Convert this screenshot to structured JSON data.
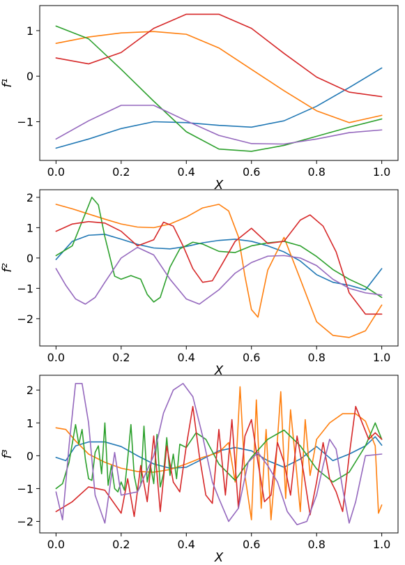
{
  "chart_data": [
    {
      "type": "line",
      "xlabel": "X",
      "ylabel": "f¹",
      "xlim": [
        -0.05,
        1.05
      ],
      "ylim": [
        -1.85,
        1.55
      ],
      "xticks": [
        0.0,
        0.2,
        0.4,
        0.6,
        0.8,
        1.0
      ],
      "xtick_labels": [
        "0.0",
        "0.2",
        "0.4",
        "0.6",
        "0.8",
        "1.0"
      ],
      "yticks": [
        1,
        0,
        -1
      ],
      "ytick_labels": [
        "1",
        "0",
        "−1"
      ],
      "grid": false,
      "series": [
        {
          "color": "#1f77b4",
          "x": [
            0,
            0.1,
            0.2,
            0.3,
            0.4,
            0.5,
            0.6,
            0.7,
            0.8,
            0.9,
            1.0
          ],
          "y": [
            -1.58,
            -1.38,
            -1.15,
            -1.0,
            -1.02,
            -1.08,
            -1.12,
            -0.98,
            -0.66,
            -0.25,
            0.18
          ]
        },
        {
          "color": "#ff7f0e",
          "x": [
            0,
            0.1,
            0.2,
            0.3,
            0.4,
            0.5,
            0.6,
            0.7,
            0.8,
            0.9,
            1.0
          ],
          "y": [
            0.72,
            0.86,
            0.95,
            0.98,
            0.92,
            0.62,
            0.15,
            -0.32,
            -0.76,
            -1.02,
            -0.86
          ]
        },
        {
          "color": "#2ca02c",
          "x": [
            0,
            0.1,
            0.2,
            0.3,
            0.4,
            0.5,
            0.6,
            0.7,
            0.8,
            0.9,
            1.0
          ],
          "y": [
            1.1,
            0.82,
            0.15,
            -0.55,
            -1.22,
            -1.6,
            -1.65,
            -1.52,
            -1.32,
            -1.12,
            -0.94
          ]
        },
        {
          "color": "#d62728",
          "x": [
            0,
            0.1,
            0.2,
            0.3,
            0.4,
            0.5,
            0.6,
            0.7,
            0.8,
            0.9,
            1.0
          ],
          "y": [
            0.4,
            0.27,
            0.52,
            1.05,
            1.36,
            1.36,
            1.05,
            0.5,
            -0.02,
            -0.35,
            -0.45
          ]
        },
        {
          "color": "#9467bd",
          "x": [
            0,
            0.1,
            0.2,
            0.3,
            0.4,
            0.5,
            0.6,
            0.7,
            0.8,
            0.9,
            1.0
          ],
          "y": [
            -1.38,
            -0.98,
            -0.64,
            -0.64,
            -0.98,
            -1.3,
            -1.48,
            -1.49,
            -1.38,
            -1.24,
            -1.18
          ]
        }
      ]
    },
    {
      "type": "line",
      "xlabel": "X",
      "ylabel": "f²",
      "xlim": [
        -0.05,
        1.05
      ],
      "ylim": [
        -2.9,
        2.25
      ],
      "xticks": [
        0.0,
        0.2,
        0.4,
        0.6,
        0.8,
        1.0
      ],
      "xtick_labels": [
        "0.0",
        "0.2",
        "0.4",
        "0.6",
        "0.8",
        "1.0"
      ],
      "yticks": [
        2,
        1,
        0,
        -1,
        -2
      ],
      "ytick_labels": [
        "2",
        "1",
        "0",
        "−1",
        "−2"
      ],
      "grid": false,
      "series": [
        {
          "color": "#1f77b4",
          "x": [
            0,
            0.05,
            0.1,
            0.15,
            0.2,
            0.25,
            0.3,
            0.35,
            0.4,
            0.45,
            0.5,
            0.55,
            0.6,
            0.65,
            0.7,
            0.75,
            0.8,
            0.85,
            0.9,
            0.95,
            1.0
          ],
          "y": [
            -0.05,
            0.55,
            0.75,
            0.78,
            0.62,
            0.45,
            0.33,
            0.3,
            0.38,
            0.5,
            0.58,
            0.62,
            0.55,
            0.4,
            0.2,
            -0.1,
            -0.55,
            -0.8,
            -0.9,
            -1.05,
            -0.35
          ]
        },
        {
          "color": "#ff7f0e",
          "x": [
            0,
            0.05,
            0.1,
            0.15,
            0.2,
            0.25,
            0.3,
            0.35,
            0.4,
            0.45,
            0.5,
            0.53,
            0.56,
            0.58,
            0.6,
            0.62,
            0.65,
            0.7,
            0.75,
            0.8,
            0.85,
            0.9,
            0.95,
            1.0
          ],
          "y": [
            1.77,
            1.62,
            1.45,
            1.28,
            1.12,
            1.02,
            1.0,
            1.12,
            1.35,
            1.65,
            1.77,
            1.55,
            0.7,
            -0.6,
            -1.7,
            -1.95,
            -0.4,
            0.68,
            -0.7,
            -2.1,
            -2.55,
            -2.62,
            -2.4,
            -1.55
          ]
        },
        {
          "color": "#2ca02c",
          "x": [
            0,
            0.05,
            0.08,
            0.11,
            0.13,
            0.15,
            0.18,
            0.2,
            0.23,
            0.26,
            0.28,
            0.3,
            0.32,
            0.35,
            0.38,
            0.42,
            0.45,
            0.5,
            0.55,
            0.6,
            0.65,
            0.7,
            0.75,
            0.8,
            0.85,
            0.9,
            0.95,
            1.0
          ],
          "y": [
            0.08,
            0.4,
            1.2,
            2.0,
            1.75,
            0.7,
            -0.6,
            -0.7,
            -0.58,
            -0.7,
            -1.2,
            -1.45,
            -1.3,
            -0.3,
            0.3,
            0.52,
            0.46,
            0.22,
            0.18,
            0.4,
            0.5,
            0.55,
            0.4,
            0.05,
            -0.38,
            -0.7,
            -0.95,
            -1.3
          ]
        },
        {
          "color": "#d62728",
          "x": [
            0,
            0.05,
            0.1,
            0.15,
            0.2,
            0.25,
            0.3,
            0.33,
            0.36,
            0.39,
            0.42,
            0.45,
            0.48,
            0.51,
            0.55,
            0.6,
            0.65,
            0.7,
            0.75,
            0.78,
            0.82,
            0.86,
            0.9,
            0.95,
            1.0
          ],
          "y": [
            0.88,
            1.12,
            1.2,
            1.15,
            0.88,
            0.4,
            0.6,
            1.18,
            1.05,
            0.4,
            -0.35,
            -0.8,
            -0.75,
            -0.2,
            0.55,
            0.98,
            0.48,
            0.55,
            1.25,
            1.42,
            1.05,
            0.2,
            -1.15,
            -1.85,
            -1.85
          ]
        },
        {
          "color": "#9467bd",
          "x": [
            0,
            0.03,
            0.06,
            0.09,
            0.12,
            0.15,
            0.2,
            0.25,
            0.3,
            0.35,
            0.4,
            0.44,
            0.5,
            0.55,
            0.6,
            0.65,
            0.7,
            0.75,
            0.8,
            0.85,
            0.9,
            0.95,
            1.0
          ],
          "y": [
            -0.35,
            -0.9,
            -1.35,
            -1.52,
            -1.3,
            -0.8,
            0.0,
            0.35,
            0.1,
            -0.7,
            -1.35,
            -1.52,
            -1.05,
            -0.5,
            -0.15,
            0.06,
            0.08,
            0.0,
            -0.25,
            -0.7,
            -1.0,
            -1.15,
            -1.22
          ]
        }
      ]
    },
    {
      "type": "line",
      "xlabel": "X",
      "ylabel": "f³",
      "xlim": [
        -0.05,
        1.05
      ],
      "ylim": [
        -2.35,
        2.45
      ],
      "xticks": [
        0.0,
        0.2,
        0.4,
        0.6,
        0.8,
        1.0
      ],
      "xtick_labels": [
        "0.0",
        "0.2",
        "0.4",
        "0.6",
        "0.8",
        "1.0"
      ],
      "yticks": [
        2,
        1,
        0,
        -1,
        -2
      ],
      "ytick_labels": [
        "2",
        "1",
        "0",
        "−1",
        "−2"
      ],
      "grid": false,
      "series": [
        {
          "color": "#1f77b4",
          "x": [
            0,
            0.03,
            0.06,
            0.1,
            0.15,
            0.2,
            0.25,
            0.3,
            0.35,
            0.4,
            0.45,
            0.5,
            0.55,
            0.6,
            0.65,
            0.7,
            0.75,
            0.8,
            0.85,
            0.9,
            0.95,
            0.98,
            1.0
          ],
          "y": [
            -0.05,
            -0.15,
            0.3,
            0.42,
            0.42,
            0.28,
            0.0,
            -0.25,
            -0.38,
            -0.35,
            -0.1,
            0.15,
            0.25,
            0.15,
            -0.15,
            -0.35,
            -0.1,
            0.28,
            -0.15,
            0.05,
            0.3,
            0.58,
            0.32
          ]
        },
        {
          "color": "#ff7f0e",
          "x": [
            0,
            0.03,
            0.06,
            0.1,
            0.15,
            0.2,
            0.25,
            0.3,
            0.35,
            0.4,
            0.45,
            0.5,
            0.53,
            0.55,
            0.565,
            0.58,
            0.6,
            0.615,
            0.63,
            0.645,
            0.66,
            0.675,
            0.69,
            0.705,
            0.72,
            0.735,
            0.75,
            0.765,
            0.78,
            0.8,
            0.84,
            0.88,
            0.92,
            0.95,
            0.98,
            0.99,
            1.0
          ],
          "y": [
            0.85,
            0.8,
            0.45,
            0.05,
            -0.2,
            -0.38,
            -0.48,
            -0.5,
            -0.42,
            -0.25,
            -0.05,
            0.1,
            0.4,
            -0.8,
            2.1,
            -0.6,
            -1.95,
            1.7,
            -1.6,
            0.8,
            -1.95,
            -0.2,
            1.95,
            -1.3,
            1.4,
            -0.1,
            -1.7,
            1.1,
            -0.6,
            0.5,
            1.0,
            1.28,
            1.28,
            1.05,
            0.3,
            -1.75,
            -1.5
          ]
        },
        {
          "color": "#2ca02c",
          "x": [
            0,
            0.02,
            0.04,
            0.06,
            0.07,
            0.08,
            0.09,
            0.1,
            0.11,
            0.12,
            0.13,
            0.14,
            0.15,
            0.16,
            0.17,
            0.18,
            0.19,
            0.2,
            0.21,
            0.22,
            0.23,
            0.24,
            0.25,
            0.26,
            0.27,
            0.28,
            0.29,
            0.3,
            0.31,
            0.32,
            0.33,
            0.34,
            0.35,
            0.36,
            0.37,
            0.38,
            0.4,
            0.43,
            0.46,
            0.5,
            0.55,
            0.6,
            0.65,
            0.7,
            0.75,
            0.8,
            0.85,
            0.9,
            0.95,
            0.98,
            1.0
          ],
          "y": [
            -1.0,
            -0.85,
            -0.2,
            0.95,
            0.35,
            0.8,
            -0.1,
            -0.7,
            -0.75,
            0.1,
            0.3,
            -0.55,
            1.0,
            -0.9,
            -0.3,
            -1.0,
            -1.1,
            -0.8,
            -1.05,
            -0.1,
            0.95,
            -0.6,
            -1.1,
            -0.9,
            0.9,
            -0.8,
            -0.3,
            -0.85,
            0.65,
            -0.95,
            -0.55,
            0.55,
            -0.6,
            0.05,
            -0.7,
            0.35,
            0.25,
            0.7,
            0.5,
            -0.25,
            -0.75,
            -0.05,
            0.5,
            0.78,
            0.3,
            -0.4,
            -0.8,
            -0.5,
            0.3,
            1.0,
            0.5
          ]
        },
        {
          "color": "#d62728",
          "x": [
            0,
            0.05,
            0.1,
            0.15,
            0.2,
            0.22,
            0.24,
            0.26,
            0.28,
            0.3,
            0.32,
            0.34,
            0.36,
            0.38,
            0.4,
            0.42,
            0.44,
            0.46,
            0.48,
            0.5,
            0.52,
            0.54,
            0.56,
            0.58,
            0.6,
            0.62,
            0.64,
            0.66,
            0.68,
            0.7,
            0.72,
            0.74,
            0.76,
            0.78,
            0.8,
            0.82,
            0.84,
            0.86,
            0.88,
            0.9,
            0.92,
            0.94,
            0.96,
            0.98,
            1.0
          ],
          "y": [
            -1.7,
            -1.4,
            -0.95,
            -1.05,
            -1.75,
            -0.7,
            -1.85,
            -0.3,
            -1.4,
            0.6,
            -1.7,
            0.3,
            -0.8,
            -1.1,
            0.3,
            1.5,
            0.0,
            -1.2,
            -1.45,
            0.8,
            -1.2,
            1.1,
            -1.6,
            0.6,
            1.1,
            -0.2,
            -1.4,
            -1.2,
            0.4,
            -0.2,
            -1.2,
            0.6,
            -0.5,
            -1.8,
            -0.8,
            0.4,
            -0.7,
            -1.1,
            -1.7,
            0.0,
            1.5,
            1.0,
            0.5,
            0.7,
            0.5
          ]
        },
        {
          "color": "#9467bd",
          "x": [
            0,
            0.02,
            0.04,
            0.06,
            0.08,
            0.1,
            0.12,
            0.15,
            0.18,
            0.2,
            0.25,
            0.3,
            0.33,
            0.36,
            0.39,
            0.42,
            0.45,
            0.48,
            0.5,
            0.53,
            0.56,
            0.59,
            0.62,
            0.65,
            0.68,
            0.71,
            0.74,
            0.77,
            0.8,
            0.82,
            0.84,
            0.86,
            0.88,
            0.9,
            0.92,
            0.95,
            1.0
          ],
          "y": [
            -1.1,
            -1.95,
            0.3,
            2.2,
            2.2,
            1.0,
            -1.2,
            -2.05,
            0.1,
            -1.2,
            -1.1,
            0.0,
            1.3,
            2.0,
            2.2,
            1.8,
            0.6,
            -0.8,
            -1.3,
            -2.0,
            -1.6,
            -0.2,
            0.1,
            -0.3,
            -0.8,
            -1.7,
            -2.1,
            -2.0,
            -1.2,
            -0.3,
            0.5,
            0.2,
            -1.0,
            -2.05,
            -1.4,
            0.0,
            0.05
          ]
        }
      ]
    }
  ]
}
